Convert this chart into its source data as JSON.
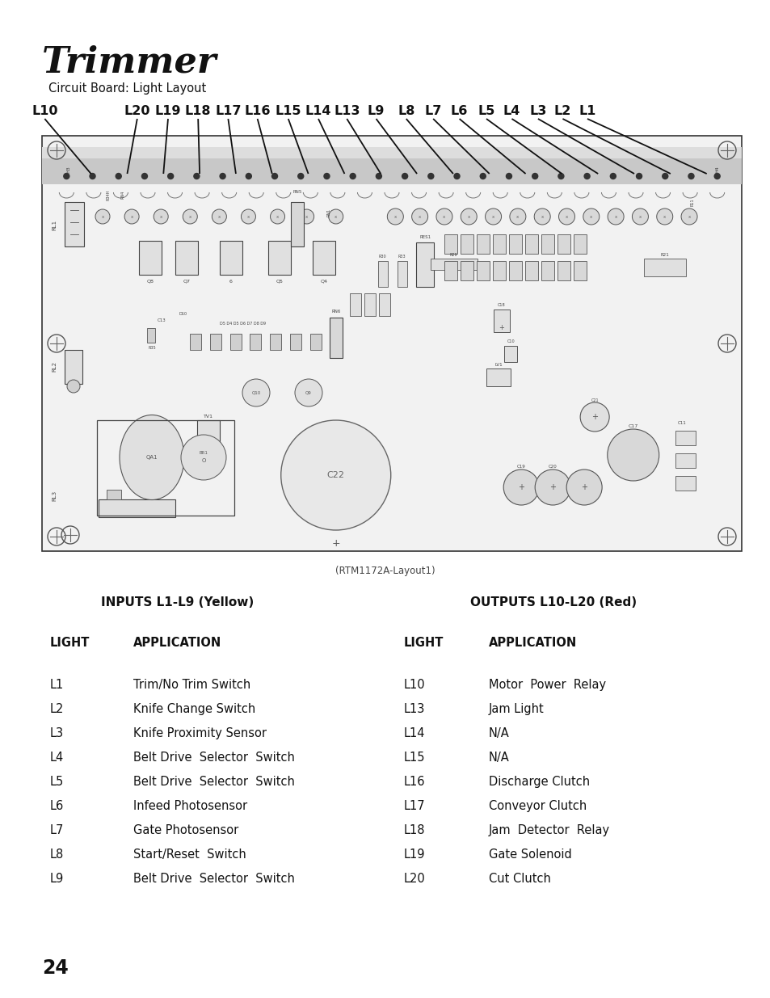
{
  "title": "Trimmer",
  "subtitle": "Circuit Board: Light Layout",
  "figure_caption": "(RTM1172A-Layout1)",
  "page_number": "24",
  "bg_color": "#ffffff",
  "inputs_header": "INPUTS L1-L9 (Yellow)",
  "outputs_header": "OUTPUTS L10-L20 (Red)",
  "inputs": [
    [
      "L1",
      "Trim/No Trim Switch"
    ],
    [
      "L2",
      "Knife Change Switch"
    ],
    [
      "L3",
      "Knife Proximity Sensor"
    ],
    [
      "L4",
      "Belt Drive  Selector  Switch"
    ],
    [
      "L5",
      "Belt Drive  Selector  Switch"
    ],
    [
      "L6",
      "Infeed Photosensor"
    ],
    [
      "L7",
      "Gate Photosensor"
    ],
    [
      "L8",
      "Start/Reset  Switch"
    ],
    [
      "L9",
      "Belt Drive  Selector  Switch"
    ]
  ],
  "outputs": [
    [
      "L10",
      "Motor  Power  Relay"
    ],
    [
      "L13",
      "Jam Light"
    ],
    [
      "L14",
      "N/A"
    ],
    [
      "L15",
      "N/A"
    ],
    [
      "L16",
      "Discharge Clutch"
    ],
    [
      "L17",
      "Conveyor Clutch"
    ],
    [
      "L18",
      "Jam  Detector  Relay"
    ],
    [
      "L19",
      "Gate Solenoid"
    ],
    [
      "L20",
      "Cut Clutch"
    ]
  ],
  "labels_top": [
    [
      "L10",
      0.058
    ],
    [
      "L20",
      0.178
    ],
    [
      "L19",
      0.218
    ],
    [
      "L18",
      0.257
    ],
    [
      "L17",
      0.296
    ],
    [
      "L16",
      0.334
    ],
    [
      "L15",
      0.374
    ],
    [
      "L14",
      0.413
    ],
    [
      "L13",
      0.45
    ],
    [
      "L9",
      0.488
    ],
    [
      "L8",
      0.527
    ],
    [
      "L7",
      0.562
    ],
    [
      "L6",
      0.596
    ],
    [
      "L5",
      0.631
    ],
    [
      "L4",
      0.664
    ],
    [
      "L3",
      0.698
    ],
    [
      "L2",
      0.73
    ],
    [
      "L1",
      0.762
    ]
  ]
}
